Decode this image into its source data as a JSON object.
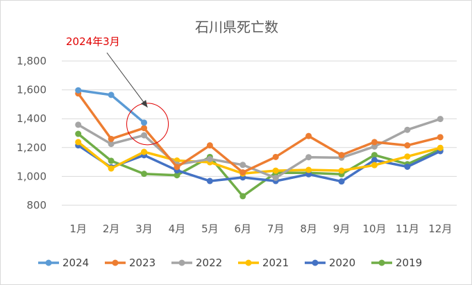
{
  "chart_data": {
    "type": "line",
    "title": "石川県死亡数",
    "categories": [
      "1月",
      "2月",
      "3月",
      "4月",
      "5月",
      "6月",
      "7月",
      "8月",
      "9月",
      "10月",
      "11月",
      "12月"
    ],
    "ylim": [
      800,
      1800
    ],
    "yticks": [
      800,
      1000,
      1200,
      1400,
      1600,
      1800
    ],
    "ytick_labels": [
      "800",
      "1,000",
      "1,200",
      "1,400",
      "1,600",
      "1,800"
    ],
    "grid": true,
    "legend_position": "bottom",
    "series": [
      {
        "name": "2024",
        "color": "#5b9bd5",
        "values": [
          1597,
          1565,
          1373,
          null,
          null,
          null,
          null,
          null,
          null,
          null,
          null,
          null
        ]
      },
      {
        "name": "2023",
        "color": "#ed7d31",
        "values": [
          1575,
          1260,
          1335,
          1065,
          1215,
          1028,
          1135,
          1280,
          1148,
          1238,
          1215,
          1272
        ]
      },
      {
        "name": "2022",
        "color": "#a5a5a5",
        "values": [
          1358,
          1225,
          1285,
          1082,
          1120,
          1080,
          990,
          1133,
          1130,
          1207,
          1323,
          1398
        ]
      },
      {
        "name": "2021",
        "color": "#ffc000",
        "values": [
          1238,
          1055,
          1170,
          1110,
          1098,
          1020,
          1040,
          1045,
          1040,
          1078,
          1138,
          1198
        ]
      },
      {
        "name": "2020",
        "color": "#4472c4",
        "values": [
          1215,
          1063,
          1147,
          1042,
          968,
          993,
          968,
          1015,
          965,
          1113,
          1067,
          1175
        ]
      },
      {
        "name": "2019",
        "color": "#70ad47",
        "values": [
          1295,
          1108,
          1018,
          1008,
          1135,
          863,
          1025,
          1025,
          1015,
          1148,
          1085,
          1188
        ]
      }
    ],
    "annotation": {
      "text": "2024年3月",
      "target_series": "2024",
      "target_category": "3月"
    }
  }
}
